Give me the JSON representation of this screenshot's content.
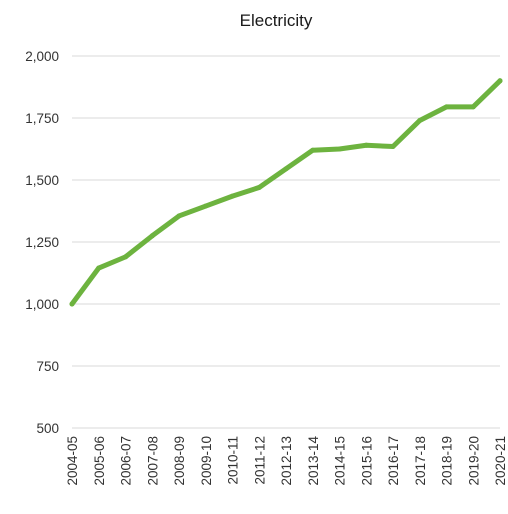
{
  "chart_data": {
    "type": "line",
    "title": "Electricity",
    "xlabel": "",
    "ylabel": "",
    "categories": [
      "2004-05",
      "2005-06",
      "2006-07",
      "2007-08",
      "2008-09",
      "2009-10",
      "2010-11",
      "2011-12",
      "2012-13",
      "2013-14",
      "2014-15",
      "2015-16",
      "2016-17",
      "2017-18",
      "2018-19",
      "2019-20",
      "2020-21"
    ],
    "series": [
      {
        "values": [
          1000,
          1145,
          1190,
          1275,
          1355,
          1395,
          1435,
          1470,
          1545,
          1620,
          1625,
          1640,
          1635,
          1740,
          1795,
          1795,
          1900
        ],
        "color": "#6db33f"
      }
    ],
    "ylim": [
      500,
      2000
    ],
    "yticks": [
      500,
      750,
      1000,
      1250,
      1500,
      1750,
      2000
    ],
    "ytick_labels": [
      "500",
      "750",
      "1,000",
      "1,250",
      "1,500",
      "1,750",
      "2,000"
    ],
    "grid": true,
    "legend": "none"
  }
}
